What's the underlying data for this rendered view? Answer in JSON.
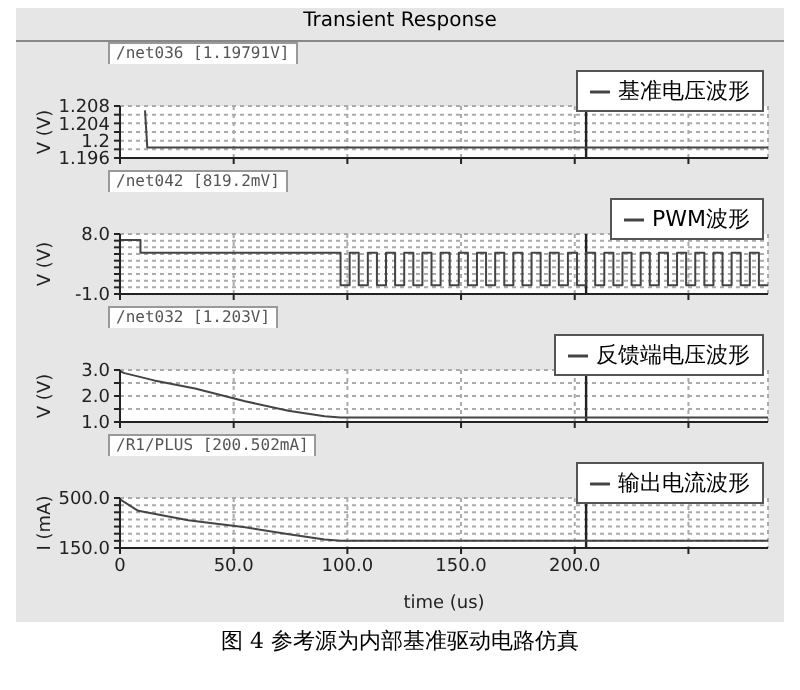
{
  "chart_data": [
    {
      "type": "line",
      "title": "Transient Response",
      "ylabel": "V (V)",
      "xlim": [
        0,
        285
      ],
      "xticks": [
        0,
        50,
        100,
        150,
        200,
        250
      ],
      "ylim": [
        1.196,
        1.208
      ],
      "yticks": [
        {
          "value": 1.196,
          "label": "1.196"
        },
        {
          "value": 1.198,
          "label": null
        },
        {
          "value": 1.2,
          "label": "1.2"
        },
        {
          "value": 1.202,
          "label": null
        },
        {
          "value": 1.204,
          "label": "1.204"
        },
        {
          "value": 1.206,
          "label": null
        },
        {
          "value": 1.208,
          "label": "1.208"
        }
      ],
      "grid": true,
      "tick_labels": "y",
      "legend": "top right",
      "annotations": [
        "/net036 [1.19791V]"
      ],
      "ref_lines": [
        {
          "axis": "x",
          "value": 205
        }
      ],
      "series": [
        {
          "name": "基准电压波形",
          "color": "#444444",
          "x": [
            11,
            12,
            285
          ],
          "values": [
            1.207,
            1.1984,
            1.1984
          ]
        }
      ]
    },
    {
      "type": "line",
      "ylabel": "V (V)",
      "xlim": [
        0,
        285
      ],
      "xticks": [
        0,
        50,
        100,
        150,
        200,
        250
      ],
      "ylim": [
        -1,
        8
      ],
      "yticks": [
        {
          "value": -1,
          "label": "-1.0"
        },
        {
          "value": 0,
          "label": null
        },
        {
          "value": 1,
          "label": null
        },
        {
          "value": 2,
          "label": null
        },
        {
          "value": 3,
          "label": null
        },
        {
          "value": 4,
          "label": null
        },
        {
          "value": 5,
          "label": null
        },
        {
          "value": 6,
          "label": null
        },
        {
          "value": 7,
          "label": null
        },
        {
          "value": 8,
          "label": "8.0"
        }
      ],
      "grid": true,
      "tick_labels": "y",
      "legend": "top right",
      "annotations": [
        "/net042 [819.2mV]"
      ],
      "ref_lines": [
        {
          "axis": "x",
          "value": 205
        }
      ],
      "series": [
        {
          "name": "PWM波形",
          "color": "#444444",
          "x": [
            0,
            9,
            9,
            97,
            97,
            101,
            101,
            105,
            105,
            109,
            109,
            113,
            113,
            117,
            117,
            121,
            121,
            125,
            125,
            129,
            129,
            133,
            133,
            137,
            137,
            141,
            141,
            145,
            145,
            149,
            149,
            153,
            153,
            157,
            157,
            161,
            161,
            165,
            165,
            169,
            169,
            173,
            173,
            177,
            177,
            181,
            181,
            185,
            185,
            189,
            189,
            193,
            193,
            197,
            197,
            201,
            201,
            205,
            205,
            209,
            209,
            213,
            213,
            217,
            217,
            221,
            221,
            225,
            225,
            229,
            229,
            233,
            233,
            237,
            237,
            241,
            241,
            245,
            245,
            249,
            249,
            253,
            253,
            257,
            257,
            261,
            261,
            265,
            265,
            269,
            269,
            273,
            273,
            277,
            277,
            281,
            281,
            285
          ],
          "values": [
            7.1,
            7.1,
            5.2,
            5.2,
            0.3,
            0.3,
            5.2,
            5.2,
            0.3,
            0.3,
            5.2,
            5.2,
            0.3,
            0.3,
            5.2,
            5.2,
            0.3,
            0.3,
            5.2,
            5.2,
            0.3,
            0.3,
            5.2,
            5.2,
            0.3,
            0.3,
            5.2,
            5.2,
            0.3,
            0.3,
            5.2,
            5.2,
            0.3,
            0.3,
            5.2,
            5.2,
            0.3,
            0.3,
            5.2,
            5.2,
            0.3,
            0.3,
            5.2,
            5.2,
            0.3,
            0.3,
            5.2,
            5.2,
            0.3,
            0.3,
            5.2,
            5.2,
            0.3,
            0.3,
            5.2,
            5.2,
            0.3,
            0.3,
            5.2,
            5.2,
            0.3,
            0.3,
            5.2,
            5.2,
            0.3,
            0.3,
            5.2,
            5.2,
            0.3,
            0.3,
            5.2,
            5.2,
            0.3,
            0.3,
            5.2,
            5.2,
            0.3,
            0.3,
            5.2,
            5.2,
            0.3,
            0.3,
            5.2,
            5.2,
            0.3,
            0.3,
            5.2,
            5.2,
            0.3,
            0.3,
            5.2,
            5.2,
            0.3,
            0.3,
            5.2,
            5.2,
            0.3,
            0.3
          ]
        }
      ]
    },
    {
      "type": "line",
      "ylabel": "V (V)",
      "xlim": [
        0,
        285
      ],
      "xticks": [
        0,
        50,
        100,
        150,
        200,
        250
      ],
      "ylim": [
        1,
        3
      ],
      "yticks": [
        {
          "value": 1,
          "label": "1.0"
        },
        {
          "value": 1.5,
          "label": null
        },
        {
          "value": 2,
          "label": "2.0"
        },
        {
          "value": 2.5,
          "label": null
        },
        {
          "value": 3,
          "label": "3.0"
        }
      ],
      "grid": true,
      "tick_labels": "y",
      "legend": "top right",
      "annotations": [
        "/net032 [1.203V]"
      ],
      "ref_lines": [
        {
          "axis": "x",
          "value": 205
        }
      ],
      "series": [
        {
          "name": "反馈端电压波形",
          "color": "#444444",
          "x": [
            0,
            2,
            15,
            33,
            55,
            74,
            90,
            97,
            285
          ],
          "values": [
            2.95,
            2.88,
            2.6,
            2.29,
            1.8,
            1.43,
            1.22,
            1.17,
            1.17
          ]
        }
      ]
    },
    {
      "type": "line",
      "ylabel": "I (mA)",
      "xlabel": "time (us)",
      "xlim": [
        0,
        285
      ],
      "xticks": [
        {
          "value": 0,
          "label": "0"
        },
        {
          "value": 50,
          "label": "50.0"
        },
        {
          "value": 100,
          "label": "100.0"
        },
        {
          "value": 150,
          "label": "150.0"
        },
        {
          "value": 200,
          "label": "200.0"
        },
        {
          "value": 250,
          "label": null
        }
      ],
      "ylim": [
        150,
        500
      ],
      "yticks": [
        {
          "value": 150,
          "label": "150.0"
        },
        {
          "value": 200,
          "label": null
        },
        {
          "value": 250,
          "label": null
        },
        {
          "value": 300,
          "label": null
        },
        {
          "value": 350,
          "label": null
        },
        {
          "value": 400,
          "label": null
        },
        {
          "value": 450,
          "label": null
        },
        {
          "value": 500,
          "label": "500.0"
        }
      ],
      "grid": true,
      "legend": "top right",
      "annotations": [
        "/R1/PLUS [200.502mA]",
        "图 4   参考源为内部基准驱动电路仿真"
      ],
      "ref_lines": [
        {
          "axis": "x",
          "value": 205
        }
      ],
      "series": [
        {
          "name": "输出电流波形",
          "color": "#444444",
          "x": [
            0,
            8,
            30,
            55,
            75,
            90,
            97,
            285
          ],
          "values": [
            490,
            410,
            345,
            295,
            245,
            210,
            200,
            200
          ]
        }
      ]
    }
  ]
}
